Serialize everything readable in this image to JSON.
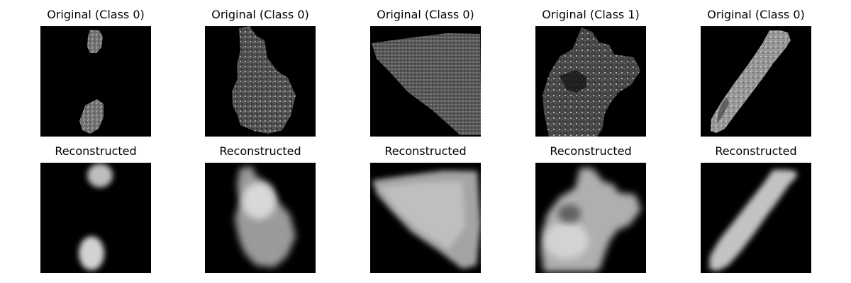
{
  "figure": {
    "top_row": [
      {
        "title": "Original (Class 0)",
        "class": "0"
      },
      {
        "title": "Original (Class 0)",
        "class": "0"
      },
      {
        "title": "Original (Class 0)",
        "class": "0"
      },
      {
        "title": "Original (Class 1)",
        "class": "1"
      },
      {
        "title": "Original (Class 0)",
        "class": "0"
      }
    ],
    "bottom_row": [
      {
        "title": "Reconstructed"
      },
      {
        "title": "Reconstructed"
      },
      {
        "title": "Reconstructed"
      },
      {
        "title": "Reconstructed"
      },
      {
        "title": "Reconstructed"
      }
    ]
  },
  "style": {
    "background": "#ffffff",
    "image_background": "#000000",
    "text_color": "#000000"
  }
}
